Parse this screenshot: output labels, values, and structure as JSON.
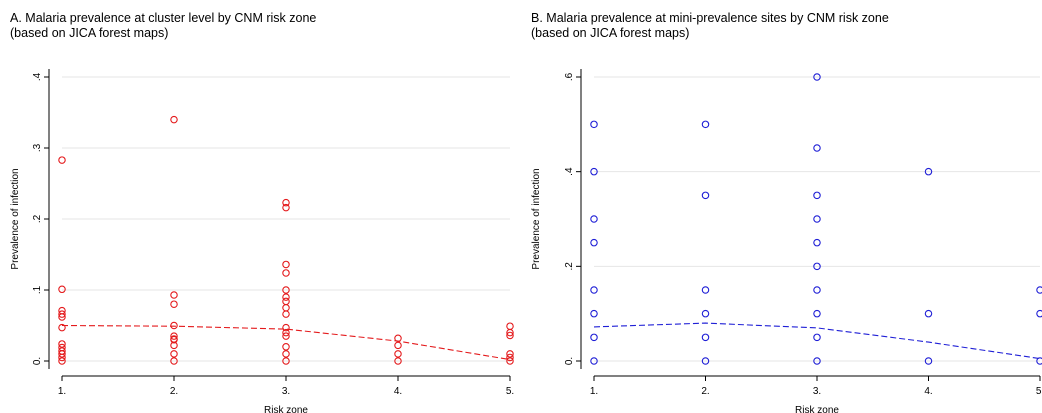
{
  "colors": {
    "panel_a": "#e41a1c",
    "panel_b": "#1f1fd6",
    "grid": "#e6e6e6"
  },
  "chart_data": [
    {
      "type": "scatter",
      "title": "A.  Malaria prevalence at cluster level by CNM risk zone",
      "subtitle": "(based on JICA forest maps)",
      "xlabel": "Risk zone",
      "ylabel": "Prevalence of infection",
      "xlim": [
        1,
        5
      ],
      "ylim": [
        0,
        0.4
      ],
      "x_ticks": [
        1,
        2,
        3,
        4,
        5
      ],
      "x_tick_labels": [
        "1.",
        "2.",
        "3.",
        "4.",
        "5."
      ],
      "y_ticks": [
        0,
        0.1,
        0.2,
        0.3,
        0.4
      ],
      "y_tick_labels": [
        "0.",
        ".1",
        ".2",
        ".3",
        ".4"
      ],
      "grid": true,
      "series": [
        {
          "marker": "hollow-circle",
          "points": [
            [
              1,
              0.283
            ],
            [
              1,
              0.101
            ],
            [
              1,
              0.071
            ],
            [
              1,
              0.066
            ],
            [
              1,
              0.062
            ],
            [
              1,
              0.047
            ],
            [
              1,
              0.024
            ],
            [
              1,
              0.019
            ],
            [
              1,
              0.014
            ],
            [
              1,
              0.01
            ],
            [
              1,
              0.005
            ],
            [
              1,
              0.0
            ],
            [
              2,
              0.34
            ],
            [
              2,
              0.093
            ],
            [
              2,
              0.08
            ],
            [
              2,
              0.05
            ],
            [
              2,
              0.035
            ],
            [
              2,
              0.031
            ],
            [
              2,
              0.03
            ],
            [
              2,
              0.022
            ],
            [
              2,
              0.01
            ],
            [
              2,
              0.0
            ],
            [
              3,
              0.223
            ],
            [
              3,
              0.216
            ],
            [
              3,
              0.136
            ],
            [
              3,
              0.124
            ],
            [
              3,
              0.1
            ],
            [
              3,
              0.09
            ],
            [
              3,
              0.084
            ],
            [
              3,
              0.075
            ],
            [
              3,
              0.066
            ],
            [
              3,
              0.047
            ],
            [
              3,
              0.04
            ],
            [
              3,
              0.035
            ],
            [
              3,
              0.02
            ],
            [
              3,
              0.01
            ],
            [
              3,
              0.0
            ],
            [
              4,
              0.032
            ],
            [
              4,
              0.022
            ],
            [
              4,
              0.01
            ],
            [
              4,
              0.0
            ],
            [
              5,
              0.049
            ],
            [
              5,
              0.04
            ],
            [
              5,
              0.036
            ],
            [
              5,
              0.01
            ],
            [
              5,
              0.005
            ],
            [
              5,
              0.0
            ]
          ]
        },
        {
          "style": "dashed-line",
          "points": [
            [
              1,
              0.05
            ],
            [
              2,
              0.049
            ],
            [
              3,
              0.045
            ],
            [
              4,
              0.028
            ],
            [
              5,
              0.002
            ]
          ]
        }
      ]
    },
    {
      "type": "scatter",
      "title": "B.  Malaria prevalence at mini-prevalence sites by CNM risk zone",
      "subtitle": "(based on JICA forest maps)",
      "xlabel": "Risk zone",
      "ylabel": "Prevalence of infection",
      "xlim": [
        1,
        5
      ],
      "ylim": [
        0,
        0.6
      ],
      "x_ticks": [
        1,
        2,
        3,
        4,
        5
      ],
      "x_tick_labels": [
        "1.",
        "2.",
        "3.",
        "4.",
        "5."
      ],
      "y_ticks": [
        0,
        0.2,
        0.4,
        0.6
      ],
      "y_tick_labels": [
        "0.",
        ".2",
        ".4",
        ".6"
      ],
      "grid": true,
      "series": [
        {
          "marker": "hollow-circle",
          "points": [
            [
              1,
              0.5
            ],
            [
              1,
              0.4
            ],
            [
              1,
              0.3
            ],
            [
              1,
              0.25
            ],
            [
              1,
              0.15
            ],
            [
              1,
              0.1
            ],
            [
              1,
              0.05
            ],
            [
              1,
              0.0
            ],
            [
              2,
              0.5
            ],
            [
              2,
              0.35
            ],
            [
              2,
              0.15
            ],
            [
              2,
              0.1
            ],
            [
              2,
              0.05
            ],
            [
              2,
              0.0
            ],
            [
              3,
              0.6
            ],
            [
              3,
              0.45
            ],
            [
              3,
              0.35
            ],
            [
              3,
              0.3
            ],
            [
              3,
              0.25
            ],
            [
              3,
              0.2
            ],
            [
              3,
              0.15
            ],
            [
              3,
              0.1
            ],
            [
              3,
              0.05
            ],
            [
              3,
              0.0
            ],
            [
              4,
              0.4
            ],
            [
              4,
              0.1
            ],
            [
              4,
              0.0
            ],
            [
              5,
              0.15
            ],
            [
              5,
              0.1
            ],
            [
              5,
              0.0
            ]
          ]
        },
        {
          "style": "dashed-line",
          "points": [
            [
              1,
              0.072
            ],
            [
              2,
              0.08
            ],
            [
              3,
              0.07
            ],
            [
              4,
              0.04
            ],
            [
              5,
              0.005
            ]
          ]
        }
      ]
    }
  ]
}
